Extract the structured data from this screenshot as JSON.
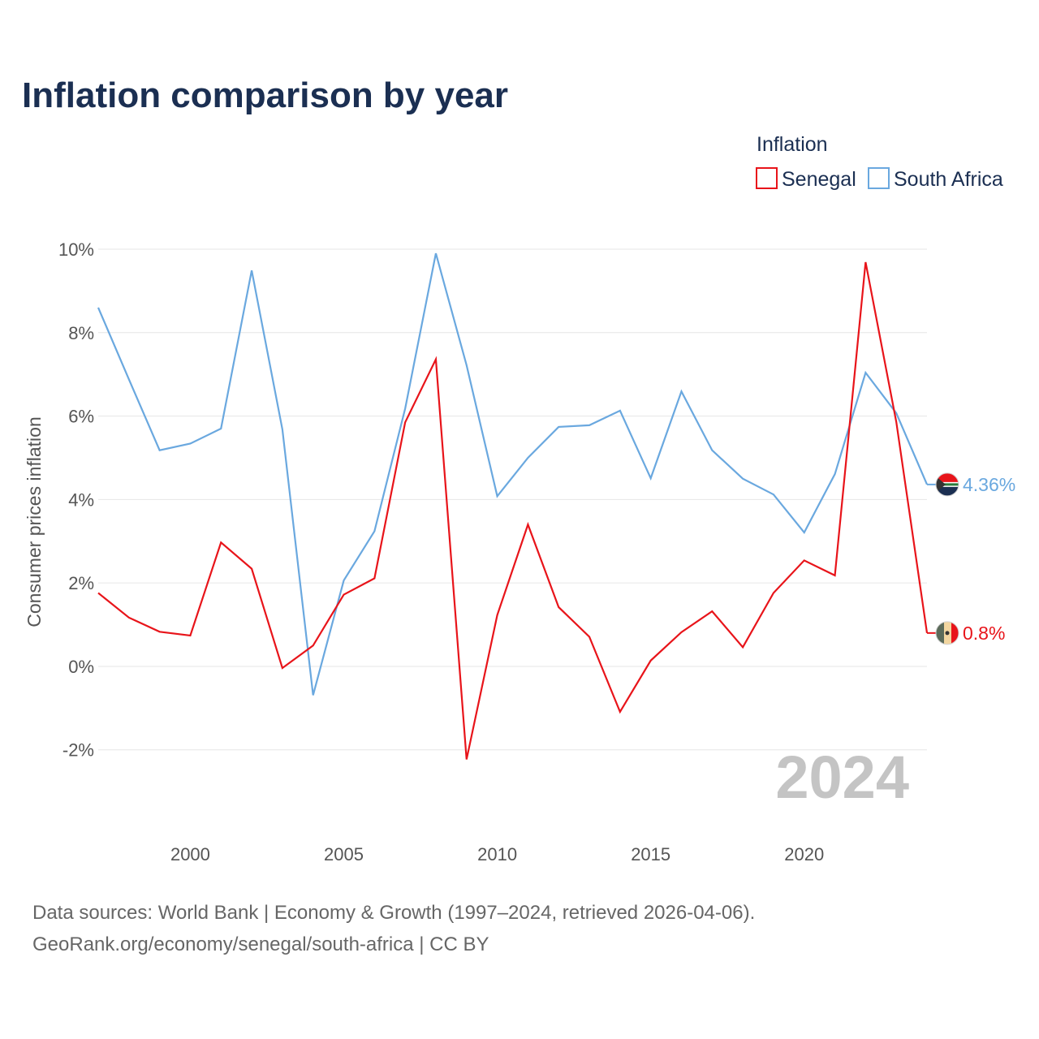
{
  "chart_data": {
    "type": "line",
    "title": "Inflation comparison by year",
    "legend_title": "Inflation",
    "legend_position": "top-right",
    "ylabel": "Consumer prices inflation",
    "xlabel": "",
    "x": [
      1997,
      1998,
      1999,
      2000,
      2001,
      2002,
      2003,
      2004,
      2005,
      2006,
      2007,
      2008,
      2009,
      2010,
      2011,
      2012,
      2013,
      2014,
      2015,
      2016,
      2017,
      2018,
      2019,
      2020,
      2021,
      2022,
      2023,
      2024
    ],
    "xlim": [
      1997,
      2024
    ],
    "ylim": [
      -2.9,
      10
    ],
    "x_ticks": [
      2000,
      2005,
      2010,
      2015,
      2020
    ],
    "x_tick_labels": [
      "2000",
      "2005",
      "2010",
      "2015",
      "2020"
    ],
    "y_ticks": [
      -2,
      0,
      2,
      4,
      6,
      8,
      10
    ],
    "y_tick_labels": [
      "-2%",
      "0%",
      "2%",
      "4%",
      "6%",
      "8%",
      "10%"
    ],
    "grid": true,
    "series": [
      {
        "name": "Senegal",
        "color": "#e8141a",
        "end_label": "0.8%",
        "flag_icon": "senegal-flag-icon",
        "values": [
          1.76,
          1.17,
          0.83,
          0.74,
          2.97,
          2.34,
          -0.04,
          0.5,
          1.72,
          2.11,
          5.85,
          7.36,
          -2.23,
          1.23,
          3.4,
          1.42,
          0.71,
          -1.09,
          0.14,
          0.82,
          1.32,
          0.46,
          1.76,
          2.54,
          2.18,
          9.69,
          5.86,
          0.8
        ]
      },
      {
        "name": "South Africa",
        "color": "#6aa8df",
        "end_label": "4.36%",
        "flag_icon": "south-africa-flag-icon",
        "values": [
          8.6,
          6.88,
          5.18,
          5.34,
          5.7,
          9.49,
          5.68,
          -0.69,
          2.06,
          3.24,
          6.18,
          9.9,
          7.22,
          4.08,
          5.0,
          5.74,
          5.78,
          6.13,
          4.51,
          6.59,
          5.18,
          4.5,
          4.12,
          3.21,
          4.61,
          7.04,
          6.07,
          4.36
        ]
      }
    ],
    "year_watermark": "2024",
    "sources": [
      "Data sources: World Bank | Economy & Growth (1997–2024, retrieved 2026-04-06).",
      "GeoRank.org/economy/senegal/south-africa | CC BY"
    ]
  }
}
